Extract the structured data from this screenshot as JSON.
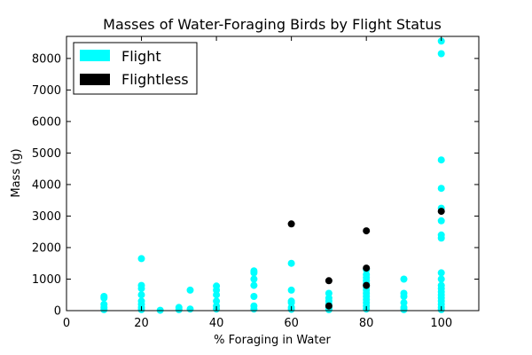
{
  "chart_data": {
    "type": "scatter",
    "title": "Masses of Water-Foraging Birds by Flight Status",
    "xlabel": "% Foraging in Water",
    "ylabel": "Mass (g)",
    "xlim": [
      0,
      110
    ],
    "ylim": [
      0,
      8700
    ],
    "xticks": [
      0,
      20,
      40,
      60,
      80,
      100
    ],
    "yticks": [
      0,
      1000,
      2000,
      3000,
      4000,
      5000,
      6000,
      7000,
      8000
    ],
    "grid": false,
    "legend_position": "top-left",
    "series": [
      {
        "name": "Flight",
        "color": "#00ffff",
        "points": [
          [
            10,
            450
          ],
          [
            10,
            400
          ],
          [
            10,
            200
          ],
          [
            10,
            100
          ],
          [
            10,
            30
          ],
          [
            20,
            1650
          ],
          [
            20,
            800
          ],
          [
            20,
            700
          ],
          [
            20,
            500
          ],
          [
            20,
            300
          ],
          [
            20,
            200
          ],
          [
            20,
            100
          ],
          [
            20,
            30
          ],
          [
            25,
            10
          ],
          [
            30,
            100
          ],
          [
            30,
            30
          ],
          [
            33,
            650
          ],
          [
            33,
            50
          ],
          [
            40,
            780
          ],
          [
            40,
            650
          ],
          [
            40,
            500
          ],
          [
            40,
            300
          ],
          [
            40,
            150
          ],
          [
            40,
            50
          ],
          [
            50,
            1260
          ],
          [
            50,
            1200
          ],
          [
            50,
            1000
          ],
          [
            50,
            800
          ],
          [
            50,
            450
          ],
          [
            50,
            150
          ],
          [
            50,
            50
          ],
          [
            60,
            1500
          ],
          [
            60,
            650
          ],
          [
            60,
            300
          ],
          [
            60,
            250
          ],
          [
            60,
            100
          ],
          [
            60,
            40
          ],
          [
            70,
            550
          ],
          [
            70,
            400
          ],
          [
            70,
            300
          ],
          [
            70,
            200
          ],
          [
            70,
            100
          ],
          [
            70,
            30
          ],
          [
            80,
            1300
          ],
          [
            80,
            1150
          ],
          [
            80,
            1050
          ],
          [
            80,
            950
          ],
          [
            80,
            850
          ],
          [
            80,
            750
          ],
          [
            80,
            650
          ],
          [
            80,
            550
          ],
          [
            80,
            450
          ],
          [
            80,
            350
          ],
          [
            80,
            250
          ],
          [
            80,
            150
          ],
          [
            80,
            50
          ],
          [
            90,
            1000
          ],
          [
            90,
            550
          ],
          [
            90,
            450
          ],
          [
            90,
            250
          ],
          [
            90,
            100
          ],
          [
            90,
            30
          ],
          [
            100,
            8550
          ],
          [
            100,
            8150
          ],
          [
            100,
            4780
          ],
          [
            100,
            3880
          ],
          [
            100,
            3250
          ],
          [
            100,
            2850
          ],
          [
            100,
            2400
          ],
          [
            100,
            2300
          ],
          [
            100,
            1200
          ],
          [
            100,
            1000
          ],
          [
            100,
            800
          ],
          [
            100,
            700
          ],
          [
            100,
            600
          ],
          [
            100,
            500
          ],
          [
            100,
            400
          ],
          [
            100,
            300
          ],
          [
            100,
            200
          ],
          [
            100,
            100
          ],
          [
            100,
            30
          ]
        ]
      },
      {
        "name": "Flightless",
        "color": "#000000",
        "points": [
          [
            60,
            2750
          ],
          [
            70,
            950
          ],
          [
            70,
            150
          ],
          [
            80,
            2530
          ],
          [
            80,
            1350
          ],
          [
            80,
            800
          ],
          [
            100,
            3150
          ]
        ]
      }
    ]
  }
}
